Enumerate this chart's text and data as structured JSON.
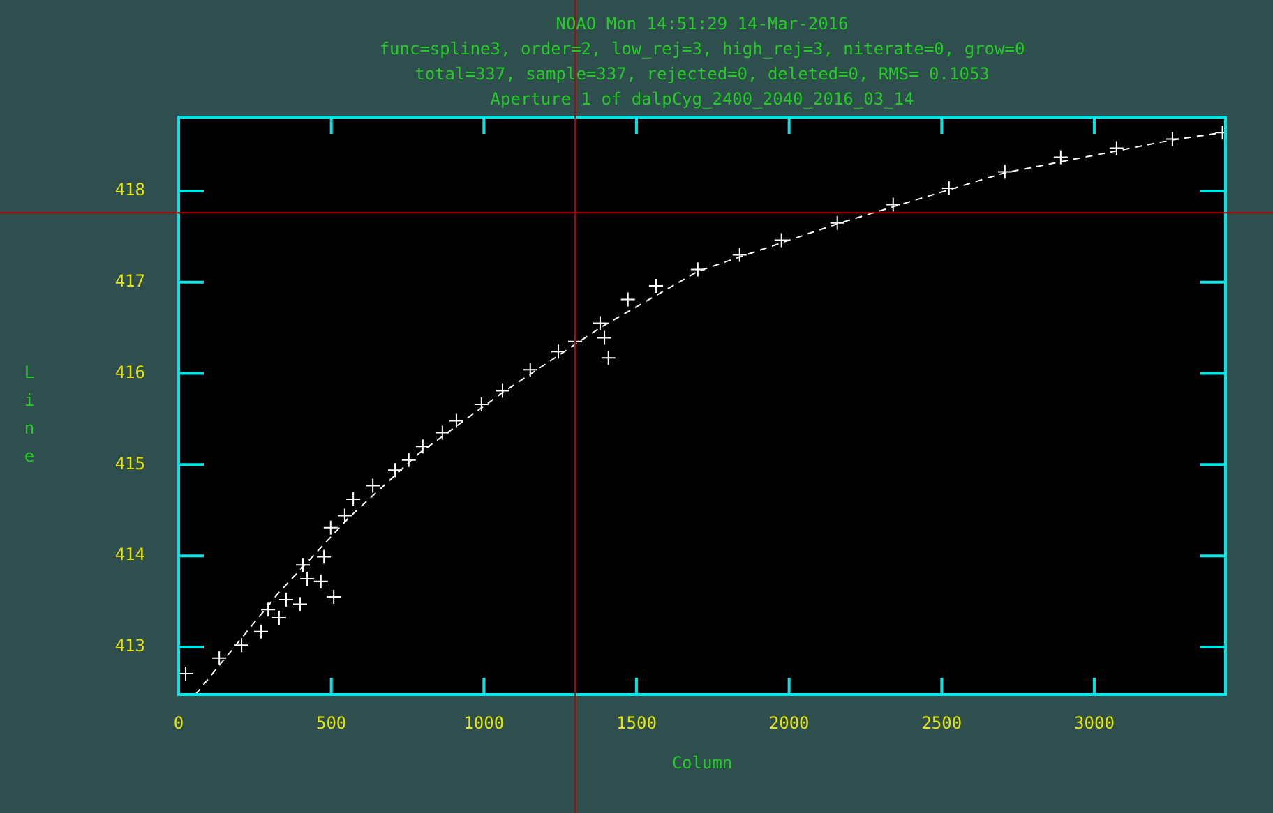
{
  "chart_data": {
    "type": "scatter",
    "title": "NOAO Mon 14:51:29 14-Mar-2016",
    "subtitle": "func=spline3, order=2, low_rej=3, high_rej=3, niterate=0, grow=0",
    "annotations": [
      "total=337, sample=337, rejected=0, deleted=0, RMS= 0.1053",
      "Aperture 1 of dalpCyg_2400_2040_2016_03_14"
    ],
    "xlabel": "Column",
    "ylabel": "Line",
    "xlim": [
      0,
      3430
    ],
    "ylim": [
      412.48,
      418.81
    ],
    "xticks": [
      0,
      500,
      1000,
      1500,
      2000,
      2500,
      3000
    ],
    "yticks": [
      413,
      414,
      415,
      416,
      417,
      418
    ],
    "grid": false,
    "legend": false,
    "series": [
      {
        "color": "#ffffff",
        "marker": "cross",
        "x": [
          23,
          133,
          206,
          270,
          293,
          329,
          352,
          398,
          421,
          466,
          476,
          508,
          407,
          498,
          544,
          572,
          636,
          709,
          754,
          800,
          864,
          910,
          992,
          1061,
          1152,
          1244,
          1299,
          1381,
          1395,
          1408,
          1472,
          1564,
          1701,
          1838,
          1975,
          2158,
          2341,
          2524,
          2707,
          2890,
          3073,
          3256,
          3420
        ],
        "values": [
          412.71,
          412.88,
          413.02,
          413.17,
          413.41,
          413.32,
          413.52,
          413.47,
          413.75,
          413.72,
          413.99,
          413.55,
          413.9,
          414.31,
          414.44,
          414.62,
          414.77,
          414.94,
          415.05,
          415.2,
          415.35,
          415.48,
          415.66,
          415.81,
          416.04,
          416.24,
          416.35,
          416.55,
          416.39,
          416.17,
          416.81,
          416.96,
          417.14,
          417.3,
          417.46,
          417.65,
          417.85,
          418.03,
          418.21,
          418.37,
          418.47,
          418.57,
          418.64
        ]
      },
      {
        "type": "line",
        "color": "#ffffff",
        "marker": "none",
        "line_style": "dashed",
        "x": [
          55,
          329,
          558,
          786,
          1061,
          1381,
          1701,
          2158,
          2707,
          3256,
          3420
        ],
        "values": [
          412.48,
          413.6,
          414.42,
          415.12,
          415.79,
          416.5,
          417.12,
          417.64,
          418.2,
          418.56,
          418.64
        ]
      }
    ],
    "ref_lines": [
      {
        "axis": "x",
        "value": 1299,
        "color": "#c00000"
      },
      {
        "axis": "y",
        "value": 417.76,
        "color": "#c00000"
      }
    ]
  }
}
